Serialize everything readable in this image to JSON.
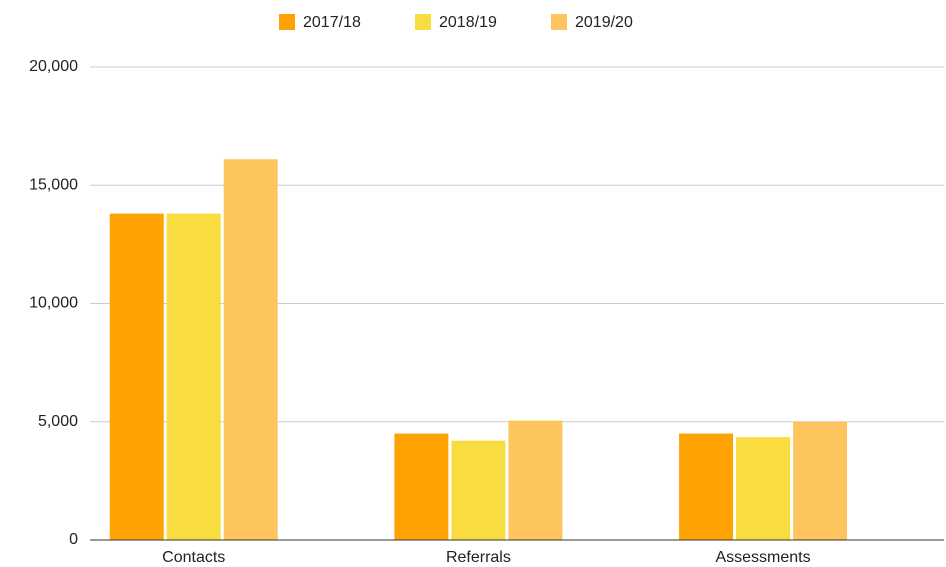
{
  "chart_data": {
    "type": "bar",
    "categories": [
      "Contacts",
      "Referrals",
      "Assessments"
    ],
    "series": [
      {
        "name": "2017/18",
        "color": "#ffa302",
        "values": [
          13800,
          4500,
          4500
        ]
      },
      {
        "name": "2018/19",
        "color": "#f9dc40",
        "values": [
          13800,
          4200,
          4350
        ]
      },
      {
        "name": "2019/20",
        "color": "#fec55e",
        "values": [
          16100,
          5050,
          5000
        ]
      }
    ],
    "ylim": [
      0,
      20000
    ],
    "yticks": [
      0,
      {
        "value": 5000,
        "label": "5,000"
      },
      {
        "value": 10000,
        "label": "10,000"
      },
      {
        "value": 15000,
        "label": "15,000"
      },
      {
        "value": 20000,
        "label": "20,000"
      }
    ],
    "grid": true,
    "legend": "top"
  }
}
